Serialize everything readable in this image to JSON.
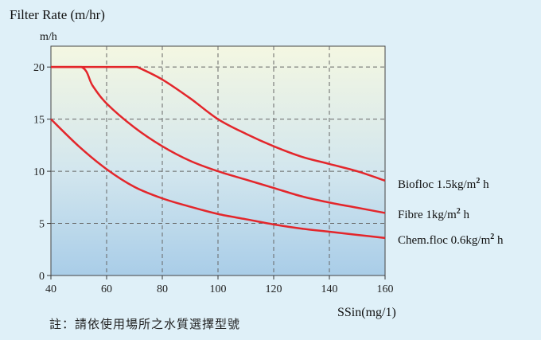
{
  "chart_data": {
    "type": "line",
    "title": "Filter Rate (m/hr)",
    "y_unit": "m/h",
    "xlabel": "SSin(mg/1)",
    "xlim": [
      40,
      160
    ],
    "ylim": [
      0,
      22
    ],
    "x_ticks": [
      40,
      60,
      80,
      100,
      120,
      140,
      160
    ],
    "y_ticks": [
      0,
      5,
      10,
      15,
      20
    ],
    "grid": true,
    "line_color": "#e3262b",
    "series": [
      {
        "name": "Biofloc 1.5kg/m² h",
        "label_main": "Biofloc  1.5kg/m",
        "label_sup": "2",
        "label_tail": "  h",
        "x": [
          40,
          50,
          60,
          70,
          71,
          80,
          90,
          100,
          110,
          120,
          130,
          140,
          150,
          160
        ],
        "y": [
          20,
          20,
          20,
          20,
          20,
          18.8,
          17,
          15,
          13.6,
          12.4,
          11.4,
          10.7,
          10,
          9.1
        ]
      },
      {
        "name": "Fibre 1kg/m² h",
        "label_main": "Fibre  1kg/m",
        "label_sup": "2",
        "label_tail": "  h",
        "x": [
          40,
          51,
          55,
          60,
          70,
          80,
          90,
          100,
          110,
          120,
          130,
          140,
          150,
          160
        ],
        "y": [
          20,
          20,
          18.2,
          16.5,
          14.2,
          12.4,
          11,
          10,
          9.2,
          8.4,
          7.6,
          7,
          6.5,
          6
        ]
      },
      {
        "name": "Chem.floc 0.6kg/m² h",
        "label_main": "Chem.floc  0.6kg/m",
        "label_sup": "2",
        "label_tail": "  h",
        "x": [
          40,
          50,
          60,
          70,
          80,
          90,
          100,
          110,
          120,
          130,
          140,
          150,
          160
        ],
        "y": [
          15,
          12.4,
          10.2,
          8.5,
          7.4,
          6.6,
          5.9,
          5.4,
          4.9,
          4.5,
          4.2,
          3.9,
          3.6
        ]
      }
    ]
  },
  "note": "註：請依使用場所之水質選擇型號"
}
